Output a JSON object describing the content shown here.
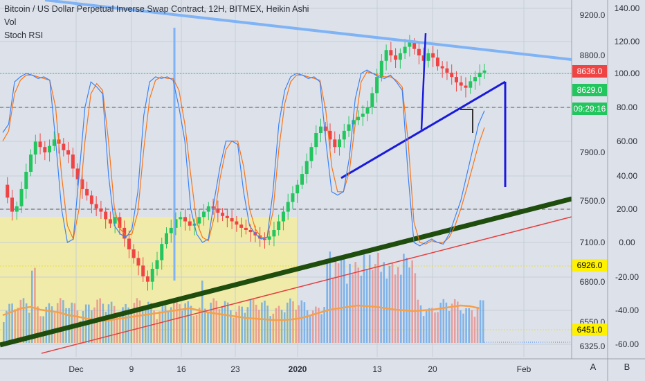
{
  "header": {
    "title": "Bitcoin / US Dollar Perpetual Inverse Swap Contract, 12H, BITMEX, Heikin Ashi",
    "indicator_vol": "Vol",
    "indicator_stoch": "Stoch RSI"
  },
  "bottom_bar": {
    "button_a": "A",
    "button_b": "B"
  },
  "colors": {
    "background": "#dde2ea",
    "up": "#22c55e",
    "down": "#ef4444",
    "stoch_k": "#3b82f6",
    "stoch_d": "#f97316",
    "vol_ma": "#f5a04a",
    "trend_blue": "#1a1adc",
    "light_blue": "#7fb3f5",
    "dark_green": "#1e4d0e",
    "red_line": "#e53e3e",
    "highlight": "#f4ec9e",
    "tag_red": "#ef4444",
    "tag_green": "#22c55e",
    "tag_yellow": "#fff200"
  },
  "chart_data": {
    "type": "candlestick",
    "title": "Bitcoin / US Dollar Perpetual Inverse Swap Contract, 12H, BITMEX, Heikin Ashi",
    "price_axis": {
      "ticks": [
        "9200.0",
        "8800.0",
        "7900.0",
        "7500.0",
        "7100.0",
        "6800.0",
        "6550.0",
        "6325.0"
      ]
    },
    "stoch_axis": {
      "ticks": [
        "140.00",
        "120.00",
        "100.00",
        "80.00",
        "60.00",
        "40.00",
        "20.00",
        "0.00",
        "-20.00",
        "-40.00",
        "-60.00"
      ]
    },
    "x_axis": {
      "ticks": [
        "Dec",
        "9",
        "16",
        "23",
        "2020",
        "13",
        "20",
        "Feb"
      ]
    },
    "price_labels": [
      {
        "text": "8636.0",
        "style": "red"
      },
      {
        "text": "8629.0",
        "style": "green"
      },
      {
        "text": "09:29:16",
        "style": "green"
      },
      {
        "text": "6926.0",
        "style": "yellow"
      },
      {
        "text": "6451.0",
        "style": "yellow"
      }
    ],
    "price_seed": [
      7600,
      7480,
      7350,
      7400,
      7560,
      7720,
      7880,
      8000,
      7950,
      7900,
      7960,
      8020,
      7980,
      7920,
      7880,
      7750,
      7650,
      7560,
      7500,
      7420,
      7380,
      7350,
      7280,
      7240,
      7300,
      7200,
      7100,
      7000,
      6920,
      6850,
      6750,
      6700,
      6820,
      6900,
      7050,
      7150,
      7200,
      7280,
      7300,
      7260,
      7220,
      7240,
      7300,
      7350,
      7400,
      7380,
      7340,
      7310,
      7290,
      7260,
      7230,
      7200,
      7180,
      7160,
      7130,
      7100,
      7090,
      7120,
      7180,
      7260,
      7350,
      7440,
      7520,
      7600,
      7700,
      7820,
      7950,
      8080,
      8140,
      8100,
      8020,
      7950,
      8020,
      8100,
      8160,
      8200,
      8230,
      8260,
      8320,
      8450,
      8600,
      8750,
      8850,
      8800,
      8760,
      8820,
      8880,
      8920,
      8860,
      8800,
      8750,
      8820,
      8780,
      8700,
      8680,
      8640,
      8600,
      8550,
      8520,
      8500,
      8560,
      8600,
      8640,
      8660
    ],
    "stoch_k_seed": [
      65,
      70,
      95,
      98,
      100,
      99,
      97,
      98,
      96,
      60,
      20,
      0,
      2,
      40,
      80,
      95,
      92,
      88,
      40,
      10,
      5,
      3,
      8,
      30,
      75,
      95,
      98,
      97,
      98,
      96,
      80,
      60,
      20,
      5,
      0,
      2,
      25,
      45,
      60,
      60,
      58,
      30,
      10,
      5,
      2,
      3,
      30,
      70,
      90,
      98,
      100,
      99,
      97,
      98,
      95,
      60,
      30,
      28,
      30,
      50,
      85,
      100,
      102,
      100,
      98,
      97,
      99,
      95,
      90,
      40,
      0,
      -2,
      0,
      2,
      0,
      -1,
      5,
      15,
      25,
      40,
      55,
      70,
      78
    ],
    "stoch_d_seed": [
      60,
      66,
      88,
      96,
      99,
      99,
      98,
      97,
      96,
      80,
      40,
      10,
      2,
      20,
      60,
      88,
      94,
      90,
      60,
      20,
      8,
      4,
      5,
      18,
      55,
      85,
      96,
      98,
      97,
      97,
      90,
      70,
      40,
      12,
      3,
      1,
      15,
      38,
      55,
      60,
      60,
      45,
      20,
      8,
      3,
      3,
      18,
      55,
      82,
      95,
      99,
      99,
      98,
      97,
      96,
      78,
      45,
      30,
      30,
      42,
      70,
      95,
      101,
      100,
      99,
      98,
      98,
      96,
      92,
      60,
      12,
      0,
      -1,
      1,
      0,
      0,
      3,
      10,
      20,
      32,
      45,
      58,
      68
    ],
    "volume_ma_seed": [
      40,
      45,
      50,
      52,
      48,
      46,
      44,
      40,
      38,
      35,
      33,
      32,
      34,
      36,
      38,
      40,
      42,
      44,
      46,
      48,
      50,
      47,
      44,
      42,
      40,
      38,
      36,
      35,
      34,
      33,
      33,
      34,
      36,
      40,
      44,
      48,
      50,
      52,
      54,
      53,
      52,
      50,
      48,
      47,
      46,
      47,
      48,
      50,
      52,
      54,
      53,
      50
    ]
  }
}
